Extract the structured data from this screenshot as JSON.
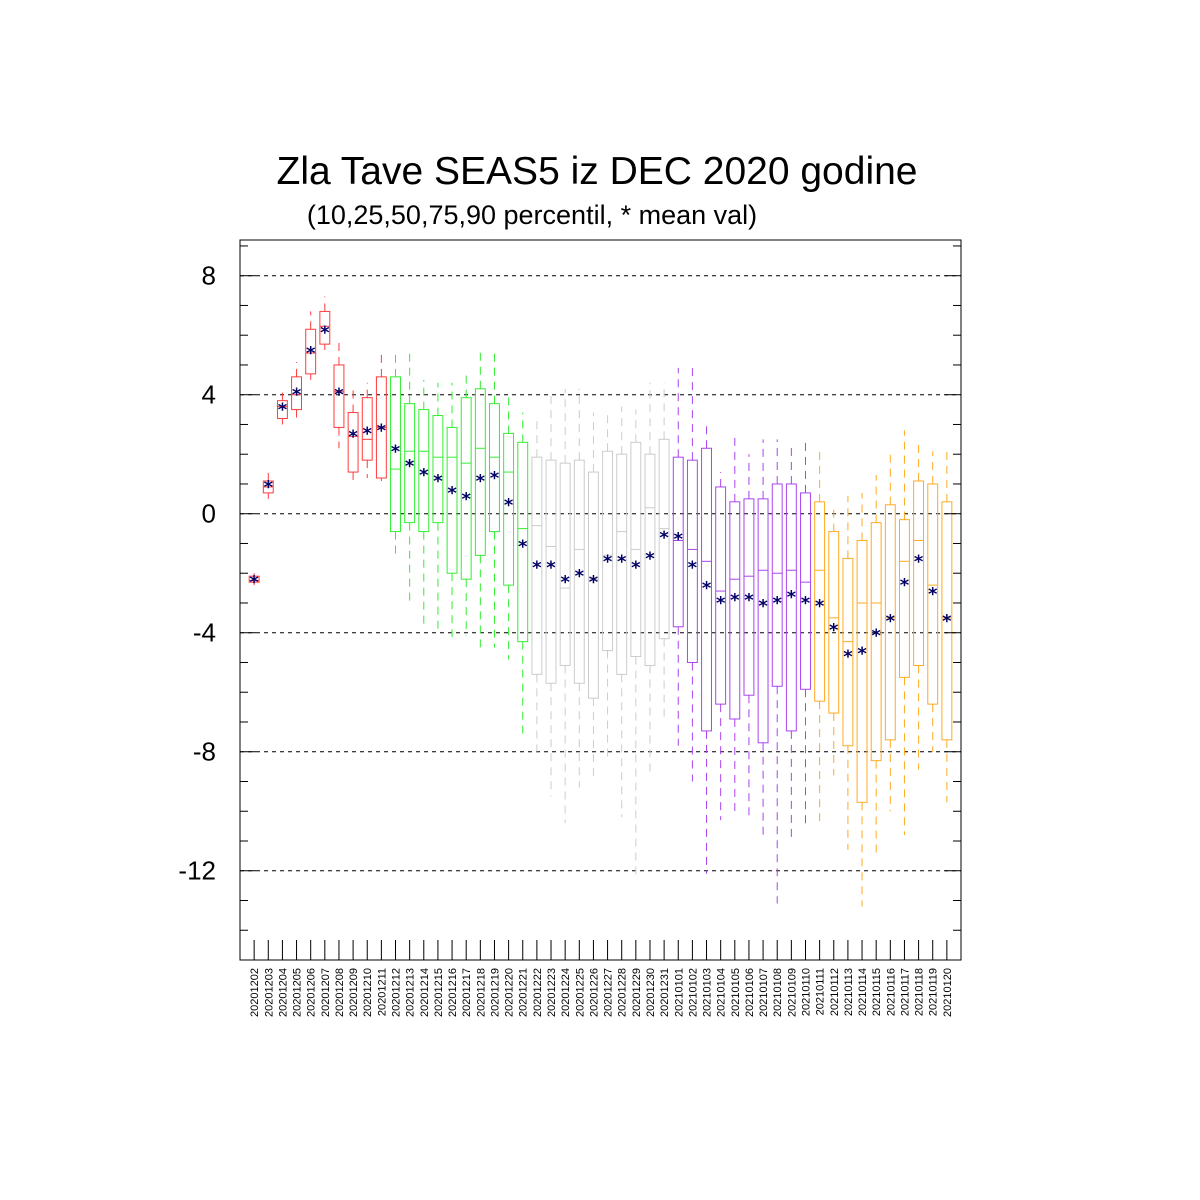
{
  "title": "Zla Tave SEAS5 iz DEC 2020 godine",
  "subtitle": "(10,25,50,75,90 percentil, * mean val)",
  "colors": {
    "dec_early": "#ff3b3b",
    "dec_mid": "#33ee33",
    "dec_late": "#cccccc",
    "jan_early": "#aa44ee",
    "jan_late": "#ffaa22",
    "mean_marker": "#000066",
    "grid": "#000000"
  },
  "chart_data": {
    "type": "box",
    "ylim": [
      -15,
      9.2
    ],
    "yticks": [
      8,
      4,
      0,
      -4,
      -8,
      -12
    ],
    "ytick_labels": [
      "8",
      "4",
      "0",
      "-4",
      "-8",
      "-12"
    ],
    "grid": "dashed horizontal at major ticks",
    "categories": [
      "20201202",
      "20201203",
      "20201204",
      "20201205",
      "20201206",
      "20201207",
      "20201208",
      "20201209",
      "20201210",
      "20201211",
      "20201212",
      "20201213",
      "20201214",
      "20201215",
      "20201216",
      "20201217",
      "20201218",
      "20201219",
      "20201220",
      "20201221",
      "20201222",
      "20201223",
      "20201224",
      "20201225",
      "20201226",
      "20201227",
      "20201228",
      "20201229",
      "20201230",
      "20201231",
      "20210101",
      "20210102",
      "20210103",
      "20210104",
      "20210105",
      "20210106",
      "20210107",
      "20210108",
      "20210109",
      "20210110",
      "20210111",
      "20210112",
      "20210113",
      "20210114",
      "20210115",
      "20210116",
      "20210117",
      "20210118",
      "20210119",
      "20210120"
    ],
    "color_groups": [
      "dec_early",
      "dec_early",
      "dec_early",
      "dec_early",
      "dec_early",
      "dec_early",
      "dec_early",
      "dec_early",
      "dec_early",
      "dec_early",
      "dec_mid",
      "dec_mid",
      "dec_mid",
      "dec_mid",
      "dec_mid",
      "dec_mid",
      "dec_mid",
      "dec_mid",
      "dec_mid",
      "dec_mid",
      "dec_late",
      "dec_late",
      "dec_late",
      "dec_late",
      "dec_late",
      "dec_late",
      "dec_late",
      "dec_late",
      "dec_late",
      "dec_late",
      "jan_early",
      "jan_early",
      "jan_early",
      "jan_early",
      "jan_early",
      "jan_early",
      "jan_early",
      "jan_early",
      "jan_early",
      "jan_early",
      "jan_late",
      "jan_late",
      "jan_late",
      "jan_late",
      "jan_late",
      "jan_late",
      "jan_late",
      "jan_late",
      "jan_late",
      "jan_late"
    ],
    "p10": [
      -2.4,
      0.5,
      3.0,
      3.1,
      4.5,
      5.5,
      2.2,
      1.0,
      1.2,
      1.1,
      -1.5,
      -3.0,
      -3.8,
      -4.0,
      -4.2,
      -4.1,
      -4.6,
      -4.5,
      -4.9,
      -7.4,
      -8.0,
      -9.5,
      -10.4,
      -9.2,
      -9.0,
      -8.3,
      -10.2,
      -12.3,
      -8.8,
      -7.0,
      -7.8,
      -9.0,
      -12.1,
      -10.3,
      -10.0,
      -10.2,
      -10.8,
      -13.1,
      -10.9,
      -10.5,
      -10.5,
      -8.8,
      -11.3,
      -13.2,
      -11.4,
      -10.0,
      -10.8,
      -8.6,
      -8.0,
      -9.7
    ],
    "p25": [
      -2.3,
      0.7,
      3.2,
      3.5,
      4.7,
      5.7,
      2.9,
      1.4,
      1.8,
      1.2,
      -0.6,
      -0.3,
      -0.6,
      -0.3,
      -2.0,
      -2.2,
      -1.4,
      -0.6,
      -2.4,
      -4.3,
      -5.4,
      -5.7,
      -5.1,
      -5.7,
      -6.2,
      -4.6,
      -5.4,
      -4.8,
      -5.1,
      -4.2,
      -3.8,
      -5.0,
      -7.3,
      -6.4,
      -6.9,
      -6.1,
      -7.7,
      -5.8,
      -7.3,
      -5.9,
      -6.3,
      -6.7,
      -7.8,
      -9.7,
      -8.3,
      -7.6,
      -5.5,
      -5.1,
      -6.4,
      -7.6
    ],
    "median": [
      -2.25,
      0.9,
      3.6,
      4.0,
      5.4,
      6.3,
      4.1,
      2.6,
      2.5,
      2.9,
      1.5,
      2.1,
      2.1,
      1.9,
      1.9,
      1.7,
      2.2,
      1.9,
      1.4,
      -0.5,
      -0.4,
      -1.1,
      -2.5,
      -1.2,
      -2.2,
      -1.4,
      -0.6,
      -1.2,
      0.2,
      -0.5,
      -0.9,
      -1.2,
      -1.6,
      -2.6,
      -2.2,
      -2.1,
      -1.9,
      -2.0,
      -1.9,
      -2.3,
      -1.9,
      -3.5,
      -4.3,
      -3.0,
      -3.0,
      -3.5,
      -1.6,
      -0.9,
      -2.4,
      -3.5
    ],
    "p75": [
      -2.1,
      1.1,
      3.8,
      4.6,
      6.2,
      6.8,
      5.0,
      3.4,
      3.9,
      4.6,
      4.6,
      3.7,
      3.5,
      3.3,
      2.9,
      3.9,
      4.2,
      3.7,
      2.7,
      2.4,
      1.9,
      1.8,
      1.7,
      1.8,
      1.4,
      2.1,
      2.0,
      2.4,
      2.0,
      2.5,
      1.9,
      1.8,
      2.2,
      0.9,
      0.4,
      0.5,
      0.5,
      1.0,
      1.0,
      0.7,
      0.4,
      -0.6,
      -1.5,
      -0.9,
      -0.3,
      0.3,
      -0.2,
      1.1,
      1.0,
      0.4
    ],
    "p90": [
      -2.0,
      1.4,
      4.2,
      5.1,
      6.8,
      7.3,
      5.9,
      4.3,
      4.4,
      5.4,
      5.4,
      5.4,
      4.5,
      4.4,
      4.4,
      4.8,
      5.5,
      5.4,
      4.0,
      3.4,
      3.2,
      4.0,
      4.2,
      4.2,
      3.4,
      3.5,
      3.6,
      3.5,
      4.4,
      4.4,
      4.9,
      5.0,
      3.0,
      1.4,
      2.7,
      2.0,
      2.5,
      2.5,
      2.4,
      2.4,
      2.2,
      0.3,
      0.6,
      0.7,
      1.3,
      2.0,
      2.8,
      2.4,
      2.1,
      2.2
    ],
    "mean": [
      -2.2,
      1.0,
      3.6,
      4.1,
      5.5,
      6.2,
      4.1,
      2.7,
      2.8,
      2.9,
      2.2,
      1.7,
      1.4,
      1.2,
      0.8,
      0.6,
      1.2,
      1.3,
      0.4,
      -1.0,
      -1.7,
      -1.7,
      -2.2,
      -2.0,
      -2.2,
      -1.5,
      -1.5,
      -1.7,
      -1.4,
      -0.7,
      -0.75,
      -1.7,
      -2.4,
      -2.9,
      -2.8,
      -2.8,
      -3.0,
      -2.9,
      -2.7,
      -2.9,
      -3.0,
      -3.8,
      -4.7,
      -4.6,
      -4.0,
      -3.5,
      -2.3,
      -1.5,
      -2.6,
      -3.5
    ]
  }
}
